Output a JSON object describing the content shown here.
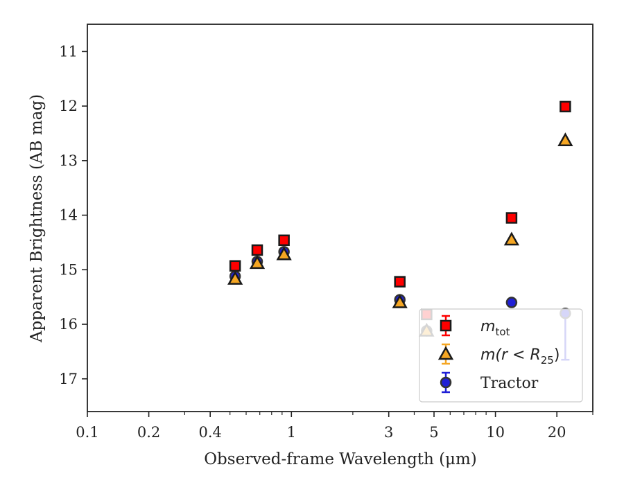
{
  "chart_data": {
    "type": "scatter",
    "title": "",
    "xlabel": "Observed-frame Wavelength (μm)",
    "ylabel": "Apparent Brightness (AB mag)",
    "xscale": "log",
    "xlim": [
      0.1,
      30
    ],
    "ylim": [
      17.6,
      10.5
    ],
    "y_inverted": true,
    "x_ticks": [
      {
        "value": 0.1,
        "label": "0.1"
      },
      {
        "value": 0.2,
        "label": "0.2"
      },
      {
        "value": 0.4,
        "label": "0.4"
      },
      {
        "value": 1,
        "label": "1"
      },
      {
        "value": 3,
        "label": "3"
      },
      {
        "value": 5,
        "label": "5"
      },
      {
        "value": 10,
        "label": "10"
      },
      {
        "value": 20,
        "label": "20"
      }
    ],
    "y_ticks": [
      {
        "value": 11,
        "label": "11"
      },
      {
        "value": 12,
        "label": "12"
      },
      {
        "value": 13,
        "label": "13"
      },
      {
        "value": 14,
        "label": "14"
      },
      {
        "value": 15,
        "label": "15"
      },
      {
        "value": 16,
        "label": "16"
      },
      {
        "value": 17,
        "label": "17"
      }
    ],
    "grid": false,
    "legend_position": "lower-right",
    "series": [
      {
        "name": "m_tot",
        "legend_label_main": "m",
        "legend_label_sub": "tot",
        "marker": "square",
        "color": "#ff0000",
        "edge_color": "#1a1a1a",
        "x": [
          0.53,
          0.68,
          0.92,
          3.4,
          4.6,
          12.0,
          22.0
        ],
        "y": [
          14.93,
          14.64,
          14.46,
          15.22,
          15.82,
          14.05,
          12.01
        ]
      },
      {
        "name": "m(r < R_25)",
        "legend_label_main": "m(r < R",
        "legend_label_sub": "25",
        "legend_label_tail": ")",
        "marker": "triangle",
        "color": "#f5a623",
        "edge_color": "#1a1a1a",
        "x": [
          0.53,
          0.68,
          0.92,
          3.4,
          4.6,
          12.0,
          22.0
        ],
        "y": [
          15.17,
          14.88,
          14.72,
          15.6,
          16.12,
          14.45,
          12.63
        ]
      },
      {
        "name": "Tractor",
        "legend_label_main": "Tractor",
        "marker": "circle",
        "color": "#1f1fd6",
        "edge_color": "#333333",
        "x": [
          0.53,
          0.68,
          0.92,
          3.4,
          4.6,
          12.0,
          22.0
        ],
        "y": [
          15.12,
          14.85,
          14.67,
          15.55,
          16.12,
          15.6,
          15.8
        ],
        "yerr_upper": [
          0,
          0,
          0,
          0,
          0,
          0,
          0.85
        ]
      }
    ]
  }
}
